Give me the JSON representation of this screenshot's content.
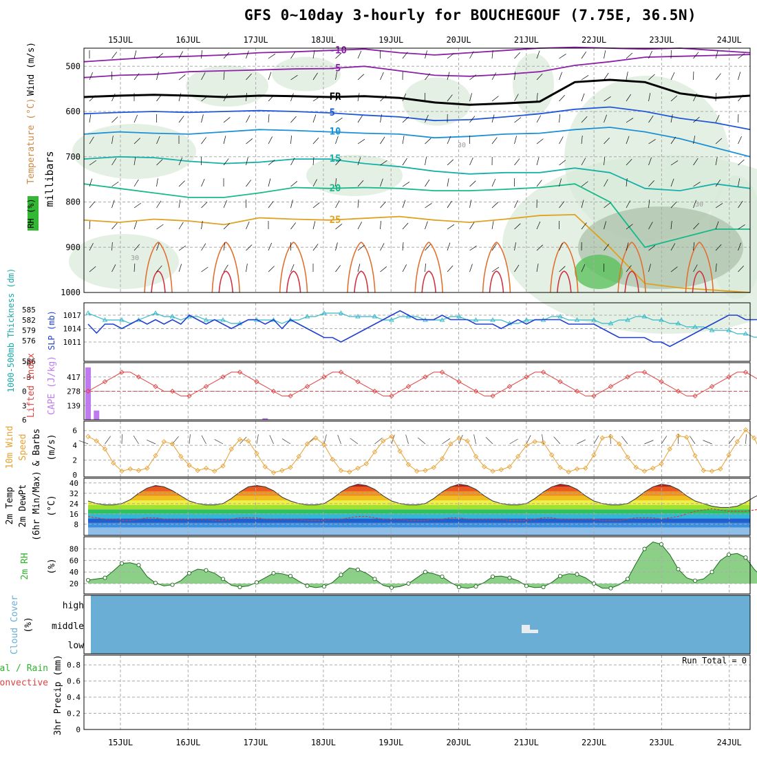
{
  "title": "GFS 0~10day 3-hourly for BOUCHEGOUF (7.75E, 36.5N)",
  "dates": [
    "15JUL",
    "16JUL",
    "17JUL",
    "18JUL",
    "19JUL",
    "20JUL",
    "21JUL",
    "22JUL",
    "23JUL",
    "24JUL"
  ],
  "colors": {
    "dew": "#d2403a",
    "rh_fill": "#2db42d",
    "cloud": "#6aaed6",
    "slp": "#1f3fcf",
    "thick": "#30b8c8",
    "li": "#e04040",
    "cape": "#c07aef",
    "wind": "#e8a030"
  },
  "chart_data": [
    {
      "type": "contour",
      "panel": "upper-air",
      "ylabel": "millibars",
      "side_labels": {
        "rh": "RH (%)",
        "temp": "Temperature (°C)",
        "wind": "Wind (m/s)"
      },
      "y_ticks": [
        500,
        600,
        700,
        800,
        900,
        1000
      ],
      "levels": [
        {
          "label": "-10",
          "pressure": [
            490,
            485,
            480,
            478,
            475,
            470,
            468,
            465,
            462,
            470,
            475,
            470,
            465,
            460,
            458,
            460,
            462,
            460,
            465,
            470
          ]
        },
        {
          "label": "-5",
          "pressure": [
            525,
            520,
            518,
            512,
            510,
            508,
            506,
            505,
            500,
            510,
            520,
            522,
            518,
            512,
            498,
            490,
            480,
            478,
            476,
            474
          ]
        },
        {
          "label": "FR",
          "pressure": [
            568,
            565,
            563,
            565,
            568,
            565,
            566,
            568,
            566,
            570,
            580,
            585,
            582,
            578,
            535,
            530,
            535,
            560,
            570,
            565
          ]
        },
        {
          "label": "5",
          "pressure": [
            605,
            602,
            600,
            602,
            600,
            598,
            600,
            603,
            608,
            612,
            620,
            618,
            612,
            605,
            595,
            590,
            600,
            615,
            625,
            640
          ]
        },
        {
          "label": "10",
          "pressure": [
            650,
            645,
            648,
            650,
            645,
            640,
            642,
            645,
            648,
            650,
            658,
            655,
            650,
            648,
            640,
            635,
            645,
            660,
            680,
            700
          ]
        },
        {
          "label": "15",
          "pressure": [
            705,
            700,
            702,
            710,
            715,
            712,
            705,
            705,
            715,
            722,
            732,
            738,
            735,
            735,
            725,
            735,
            770,
            775,
            760,
            770
          ]
        },
        {
          "label": "20",
          "pressure": [
            760,
            770,
            780,
            790,
            790,
            780,
            768,
            770,
            768,
            770,
            775,
            775,
            772,
            768,
            760,
            800,
            900,
            880,
            860,
            860
          ]
        },
        {
          "label": "25",
          "pressure": [
            840,
            845,
            838,
            842,
            850,
            835,
            838,
            840,
            836,
            832,
            840,
            845,
            838,
            830,
            828,
            900,
            980,
            990,
            995,
            1000
          ]
        }
      ],
      "labels": [
        "30",
        "30",
        "30"
      ]
    },
    {
      "type": "line",
      "panel": "slp-thickness",
      "ylabel_left": "1000-500mb Thickness (dm)",
      "ylabel_right": "SLP (mb)",
      "left_ticks": [
        576,
        579,
        582,
        585
      ],
      "right_ticks": [
        1011,
        1014,
        1017
      ],
      "left_min": "556",
      "series": [
        {
          "name": "SLP",
          "axis": "mb",
          "values": [
            1015,
            1013,
            1015,
            1015,
            1014,
            1015,
            1016,
            1015,
            1016,
            1015,
            1016,
            1015,
            1017,
            1016,
            1015,
            1016,
            1015,
            1014,
            1015,
            1016,
            1016,
            1015,
            1016,
            1014,
            1016,
            1015,
            1014,
            1013,
            1012,
            1012,
            1011,
            1012,
            1013,
            1014,
            1015,
            1016,
            1017,
            1018,
            1017,
            1016,
            1016,
            1016,
            1017,
            1016,
            1016,
            1016,
            1015,
            1015,
            1015,
            1014,
            1015,
            1016,
            1015,
            1016,
            1016,
            1016,
            1016,
            1015,
            1015,
            1015,
            1015,
            1014,
            1013,
            1012,
            1012,
            1012,
            1012,
            1011,
            1011,
            1010,
            1011,
            1012,
            1013,
            1014,
            1015,
            1016,
            1017,
            1017,
            1016,
            1016,
            1016,
            1017,
            1017,
            1018,
            1018,
            1017,
            1016,
            1016,
            1016
          ]
        },
        {
          "name": "Thickness",
          "axis": "dm",
          "values": [
            584,
            583,
            582,
            582,
            582,
            581,
            582,
            583,
            584,
            583,
            583,
            582,
            583,
            583,
            582,
            582,
            582,
            581,
            581,
            582,
            582,
            582,
            582,
            581,
            582,
            582,
            583,
            583,
            584,
            584,
            584,
            583,
            583,
            583,
            583,
            582,
            582,
            583,
            583,
            583,
            582,
            582,
            582,
            583,
            583,
            582,
            582,
            582,
            582,
            582,
            581,
            581,
            582,
            582,
            582,
            583,
            583,
            582,
            582,
            582,
            582,
            581,
            581,
            582,
            582,
            583,
            583,
            582,
            582,
            581,
            581,
            580,
            580,
            580,
            579,
            579,
            579,
            578,
            578,
            577,
            577,
            576,
            576,
            576,
            576,
            575,
            575,
            574,
            573
          ]
        }
      ]
    },
    {
      "type": "bar+line",
      "panel": "cape-li",
      "ylabel_left": "Lifted Index",
      "ylabel_right": "CAPE (J/kg)",
      "li_ticks": [
        "-6",
        "-3",
        "0",
        "3",
        "6"
      ],
      "cape_ticks": [
        "417",
        "278",
        "139"
      ],
      "lifted_index": [
        0,
        -1,
        -2,
        -3,
        -4,
        -4,
        -3,
        -2,
        -1,
        0,
        0,
        1,
        1,
        0,
        -1,
        -2,
        -3,
        -4,
        -4,
        -3,
        -2,
        -1,
        0,
        1,
        1,
        0,
        -1,
        -2,
        -3,
        -4,
        -4,
        -3,
        -2,
        -1,
        0,
        1,
        1,
        0,
        -1,
        -2,
        -3,
        -4,
        -4,
        -3,
        -2,
        -1,
        0,
        1,
        1,
        0,
        -1,
        -2,
        -3,
        -4,
        -4,
        -3,
        -2,
        -1,
        0,
        1,
        1,
        0,
        -1,
        -2,
        -3,
        -4,
        -4,
        -3,
        -2,
        -1,
        0,
        1,
        1,
        0,
        -1,
        -2,
        -3,
        -4,
        -4,
        -3,
        -2,
        -1,
        0,
        1,
        1,
        0,
        -1,
        -2,
        -3
      ],
      "cape": [
        510,
        90,
        0,
        0,
        0,
        0,
        0,
        0,
        0,
        0,
        0,
        0,
        0,
        0,
        0,
        0,
        0,
        0,
        0,
        0,
        0,
        15,
        0,
        0,
        0,
        0,
        0,
        0,
        0,
        0,
        0,
        0,
        0,
        0,
        0,
        0,
        0,
        0,
        0,
        0,
        0,
        0,
        0,
        0,
        0,
        0,
        0,
        0,
        0,
        0,
        0,
        0,
        0,
        0,
        0,
        0,
        0,
        0,
        0,
        0,
        0,
        0,
        0,
        0,
        0,
        0,
        0,
        0,
        0,
        0,
        0,
        0,
        0,
        0,
        0,
        0,
        0,
        0,
        0,
        0,
        0,
        0,
        0,
        0,
        0,
        0,
        0,
        0,
        0,
        0
      ]
    },
    {
      "type": "line",
      "panel": "wind10m",
      "ylabel": "10m Wind Speed & Barbs (m/s)",
      "ticks": [
        "0",
        "2",
        "4",
        "6"
      ],
      "speed": [
        5.2,
        4.6,
        3.5,
        1.6,
        0.5,
        0.8,
        0.6,
        0.9,
        2.6,
        4.5,
        4.2,
        2.5,
        1.3,
        0.6,
        0.9,
        0.5,
        1.2,
        3.5,
        4.8,
        4.6,
        2.9,
        1.1,
        0.3,
        0.6,
        1.0,
        2.5,
        4.2,
        5.0,
        4.1,
        2.1,
        0.6,
        0.4,
        0.9,
        1.5,
        3.1,
        4.6,
        5.2,
        3.2,
        1.4,
        0.5,
        0.6,
        1.0,
        2.2,
        4.2,
        5.0,
        4.6,
        2.5,
        1.1,
        0.5,
        0.7,
        1.1,
        2.5,
        4.0,
        4.5,
        4.4,
        2.7,
        1.0,
        0.4,
        0.8,
        0.9,
        2.7,
        5.0,
        5.2,
        4.2,
        2.4,
        1.0,
        0.5,
        0.9,
        1.5,
        3.5,
        5.3,
        5.1,
        2.6,
        0.6,
        0.5,
        0.8,
        2.7,
        4.5,
        6.1,
        5.0,
        2.7,
        1.2,
        1.5,
        1.5,
        2.6,
        4.5,
        6.8,
        6.5,
        3.2,
        0.6,
        0.4,
        1.2
      ]
    },
    {
      "type": "area",
      "panel": "temp2m",
      "ylabel": "2m Temp 2m DewPt (6hr Min/Max) (°C)",
      "ticks": [
        "8",
        "16",
        "24",
        "32",
        "40"
      ],
      "temp": [
        26,
        24,
        23,
        23,
        24,
        27,
        32,
        36,
        38,
        37,
        34,
        30,
        26,
        24,
        23,
        23,
        24,
        28,
        33,
        37,
        38,
        37,
        34,
        29,
        26,
        24,
        23,
        23,
        24,
        28,
        33,
        37,
        39,
        38,
        35,
        30,
        26,
        24,
        23,
        23,
        24,
        28,
        33,
        37,
        39,
        38,
        35,
        30,
        26,
        24,
        23,
        23,
        24,
        28,
        33,
        37,
        39,
        38,
        35,
        30,
        26,
        24,
        23,
        23,
        24,
        28,
        33,
        37,
        39,
        38,
        35,
        30,
        26,
        24,
        22,
        21,
        21,
        22,
        25,
        29,
        32,
        31,
        28,
        24,
        22,
        21,
        21,
        22,
        25,
        29,
        32,
        30,
        27,
        24,
        22,
        20,
        20
      ],
      "dew": [
        14,
        13,
        12,
        12,
        11,
        11,
        12,
        13,
        13,
        12,
        12,
        12,
        12,
        12,
        12,
        11,
        11,
        12,
        13,
        13,
        13,
        12,
        12,
        12,
        12,
        12,
        11,
        11,
        11,
        12,
        12,
        13,
        14,
        14,
        13,
        12,
        12,
        12,
        11,
        11,
        11,
        12,
        12,
        13,
        13,
        12,
        12,
        12,
        12,
        12,
        11,
        11,
        11,
        12,
        13,
        13,
        12,
        12,
        12,
        12,
        12,
        11,
        11,
        11,
        12,
        13,
        13,
        13,
        12,
        13,
        14,
        16,
        18,
        19,
        20,
        19,
        18,
        18,
        18,
        19,
        20,
        20,
        19,
        18,
        18,
        19,
        20,
        20,
        20,
        19,
        20,
        22,
        22,
        21,
        20,
        20,
        20
      ]
    },
    {
      "type": "area",
      "panel": "rh2m",
      "ylabel": "2m RH (%)",
      "ticks": [
        "20",
        "40",
        "60",
        "80"
      ],
      "values": [
        26,
        28,
        30,
        42,
        55,
        56,
        52,
        32,
        21,
        16,
        18,
        25,
        38,
        45,
        43,
        38,
        28,
        17,
        14,
        16,
        22,
        30,
        38,
        37,
        33,
        24,
        16,
        13,
        15,
        22,
        35,
        47,
        44,
        38,
        28,
        17,
        13,
        15,
        20,
        30,
        40,
        37,
        32,
        22,
        14,
        12,
        15,
        22,
        32,
        33,
        30,
        25,
        16,
        13,
        14,
        22,
        33,
        37,
        36,
        30,
        20,
        12,
        12,
        18,
        28,
        55,
        80,
        92,
        88,
        70,
        45,
        30,
        25,
        28,
        40,
        60,
        70,
        72,
        65,
        45,
        30,
        30,
        35,
        50,
        78,
        90,
        88,
        70
      ]
    },
    {
      "type": "table",
      "panel": "cloud",
      "ylabel": "Cloud Cover (%)",
      "rows": [
        "high",
        "middle",
        "low"
      ]
    },
    {
      "type": "bar",
      "panel": "precip",
      "ylabel": "3hr Precip (mm)",
      "legend": [
        "Total / Rain",
        "Convective"
      ],
      "ticks": [
        "0",
        "0.2",
        "0.4",
        "0.6",
        "0.8"
      ],
      "run_total": "Run Total = 0",
      "values": []
    }
  ]
}
